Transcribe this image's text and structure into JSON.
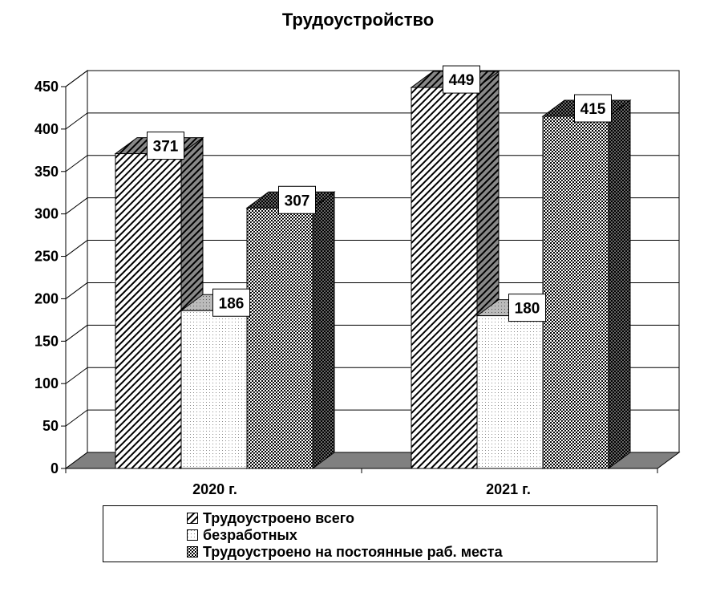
{
  "chart_data": {
    "type": "bar",
    "title": "Трудоустройство",
    "categories": [
      "2020 г.",
      "2021 г."
    ],
    "series": [
      {
        "name": "Трудоустроено всего",
        "values": [
          371,
          449
        ],
        "pattern": "diagonal"
      },
      {
        "name": "безработных",
        "values": [
          186,
          180
        ],
        "pattern": "dots"
      },
      {
        "name": "Трудоустроено на постоянные раб. места",
        "values": [
          307,
          415
        ],
        "pattern": "crosshatch"
      }
    ],
    "yticks": [
      "0",
      "50",
      "100",
      "150",
      "200",
      "250",
      "300",
      "350",
      "400",
      "450"
    ],
    "ylim": [
      0,
      450
    ],
    "xlabel": "",
    "ylabel": "",
    "grid": true,
    "legend_position": "bottom",
    "data_labels": true
  }
}
